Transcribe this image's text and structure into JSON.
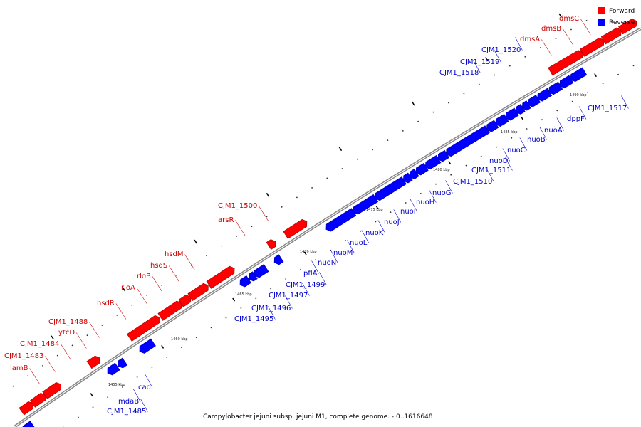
{
  "caption": "Campylobacter jejuni subsp. jejuni M1, complete genome. - 0..1616648",
  "legend": [
    {
      "label": "Forward",
      "color": "#ff0000"
    },
    {
      "label": "Reverse",
      "color": "#0000ff"
    }
  ],
  "colors": {
    "forward": "#ff0000",
    "reverse": "#0000ff",
    "backbone": "#888888",
    "label_forward": "#cc0000",
    "label_reverse": "#0000cc"
  },
  "scale_ticks": [
    "1455 kbp",
    "1460 kbp",
    "1465 kbp",
    "1470 kbp",
    "1475 kbp",
    "1480 kbp",
    "1485 kbp",
    "1490 kbp"
  ],
  "forward_genes": [
    "lamB",
    "CJM1_1483",
    "CJM1_1484",
    "ytcD",
    "CJM1_1488",
    "hsdR",
    "rloA",
    "rloB",
    "hsdS",
    "hsdM",
    "arsR",
    "CJM1_1500",
    "dmsA",
    "dmsB",
    "dmsC"
  ],
  "reverse_genes": [
    "CJM1_1485",
    "mdaB",
    "cad",
    "CJM1_1495",
    "CJM1_1496",
    "CJM1_1497",
    "CJM1_1499",
    "pflA",
    "nuoN",
    "nuoM",
    "nuoL",
    "nuoK",
    "nuoJ",
    "nuoI",
    "nuoH",
    "nuoG",
    "CJM1_1510",
    "CJM1_1511",
    "nuoD",
    "nuoC",
    "nuoB",
    "nuoA",
    "dppF",
    "CJM1_1517",
    "CJM1_1518",
    "CJM1_1519",
    "CJM1_1520"
  ]
}
